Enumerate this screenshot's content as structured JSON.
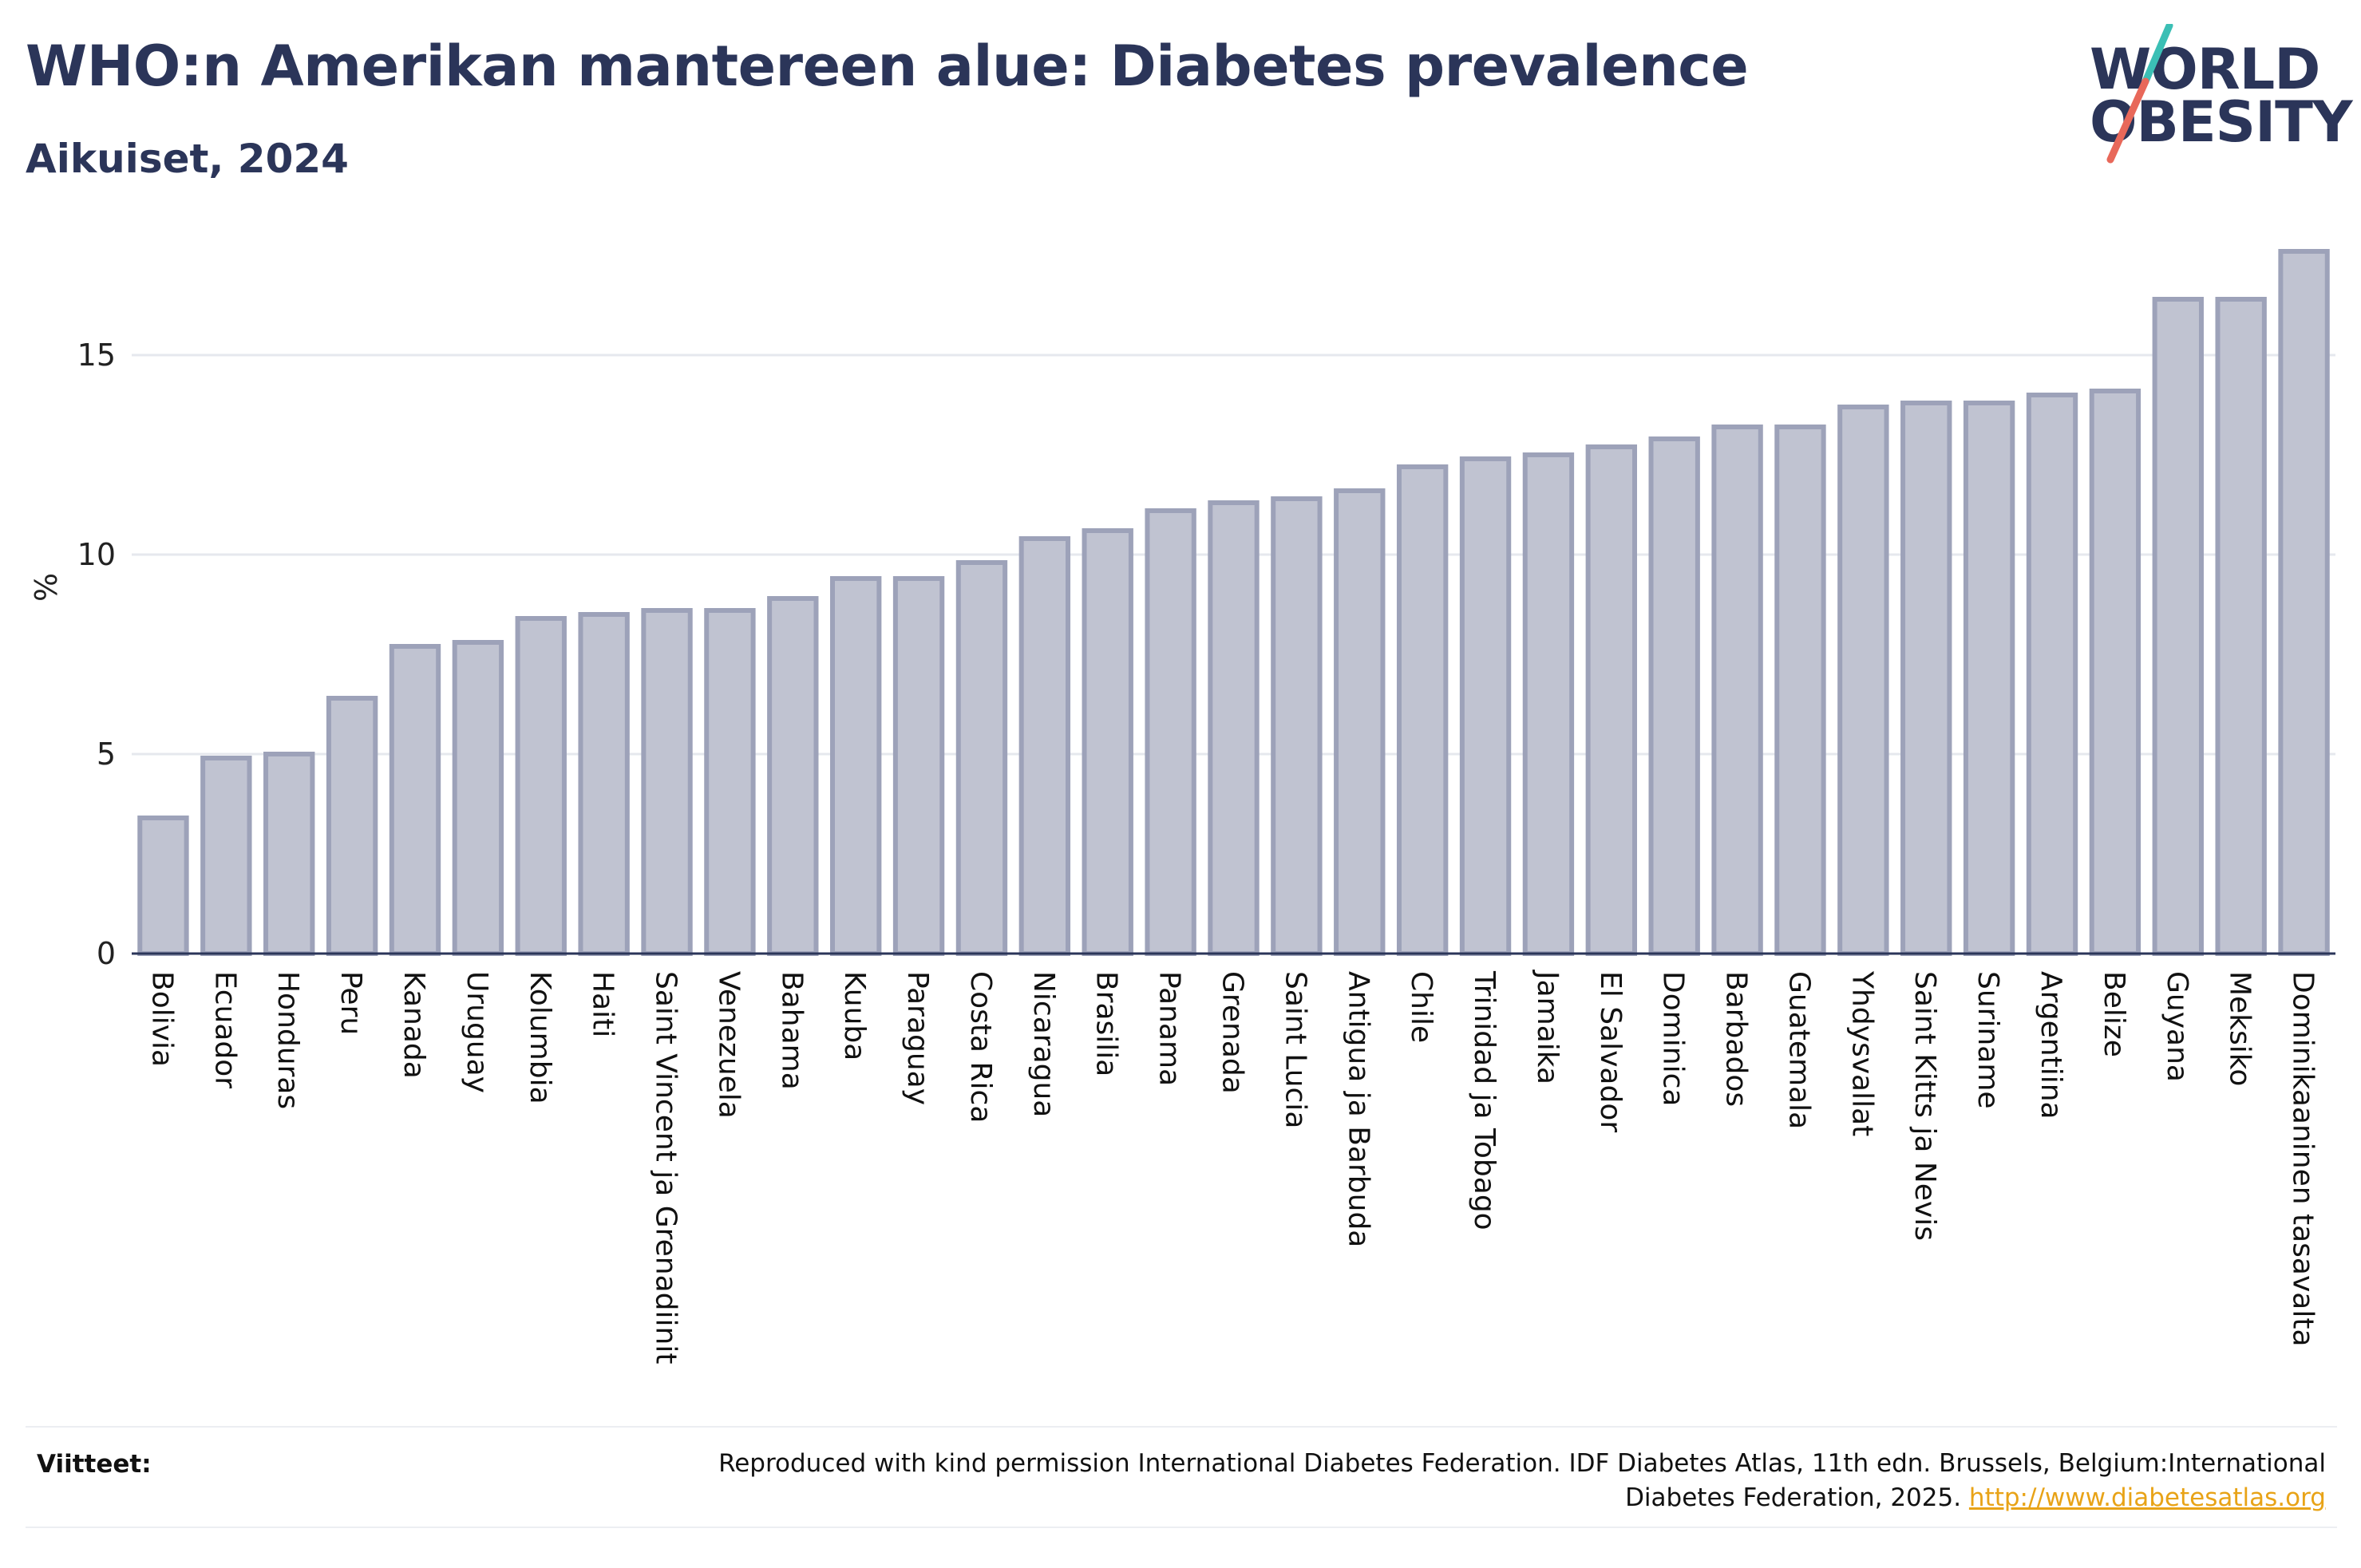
{
  "header": {
    "title": "WHO:n Amerikan mantereen alue: Diabetes prevalence",
    "subtitle": "Aikuiset, 2024"
  },
  "logo": {
    "line1": "WORLD",
    "line2": "OBESITY",
    "colors": {
      "text": "#2b3559",
      "slash_top": "#3bbfb5",
      "slash_bottom": "#e8685a"
    }
  },
  "references": {
    "label": "Viitteet:",
    "text": "Reproduced with kind permission International Diabetes Federation. IDF Diabetes Atlas, 11th edn. Brussels, Belgium:International Diabetes Federation, 2025. ",
    "link": "http://www.diabetesatlas.org"
  },
  "colors": {
    "bar_fill": "#c0c3d1",
    "bar_stroke": "#9da2b9",
    "grid": "#e6e8ee",
    "axis": "#2b3559"
  },
  "chart_data": {
    "type": "bar",
    "ylabel": "%",
    "ylim": [
      0,
      17.7
    ],
    "yticks": [
      0,
      5,
      10,
      15
    ],
    "grid": true,
    "categories": [
      "Bolivia",
      "Ecuador",
      "Honduras",
      "Peru",
      "Kanada",
      "Uruguay",
      "Kolumbia",
      "Haiti",
      "Saint Vincent ja Grenadiinit",
      "Venezuela",
      "Bahama",
      "Kuuba",
      "Paraguay",
      "Costa Rica",
      "Nicaragua",
      "Brasilia",
      "Panama",
      "Grenada",
      "Saint Lucia",
      "Antigua ja Barbuda",
      "Chile",
      "Trinidad ja Tobago",
      "Jamaika",
      "El Salvador",
      "Dominica",
      "Barbados",
      "Guatemala",
      "Yhdysvallat",
      "Saint Kitts ja Nevis",
      "Suriname",
      "Argentiina",
      "Belize",
      "Guyana",
      "Meksiko",
      "Dominikaaninen tasavalta"
    ],
    "values": [
      3.4,
      4.9,
      5.0,
      6.4,
      7.7,
      7.8,
      8.4,
      8.5,
      8.6,
      8.6,
      8.9,
      9.4,
      9.4,
      9.8,
      10.4,
      10.6,
      11.1,
      11.3,
      11.4,
      11.6,
      12.2,
      12.4,
      12.5,
      12.7,
      12.9,
      13.2,
      13.2,
      13.7,
      13.8,
      13.8,
      14.0,
      14.1,
      16.4,
      16.4,
      17.6
    ]
  }
}
